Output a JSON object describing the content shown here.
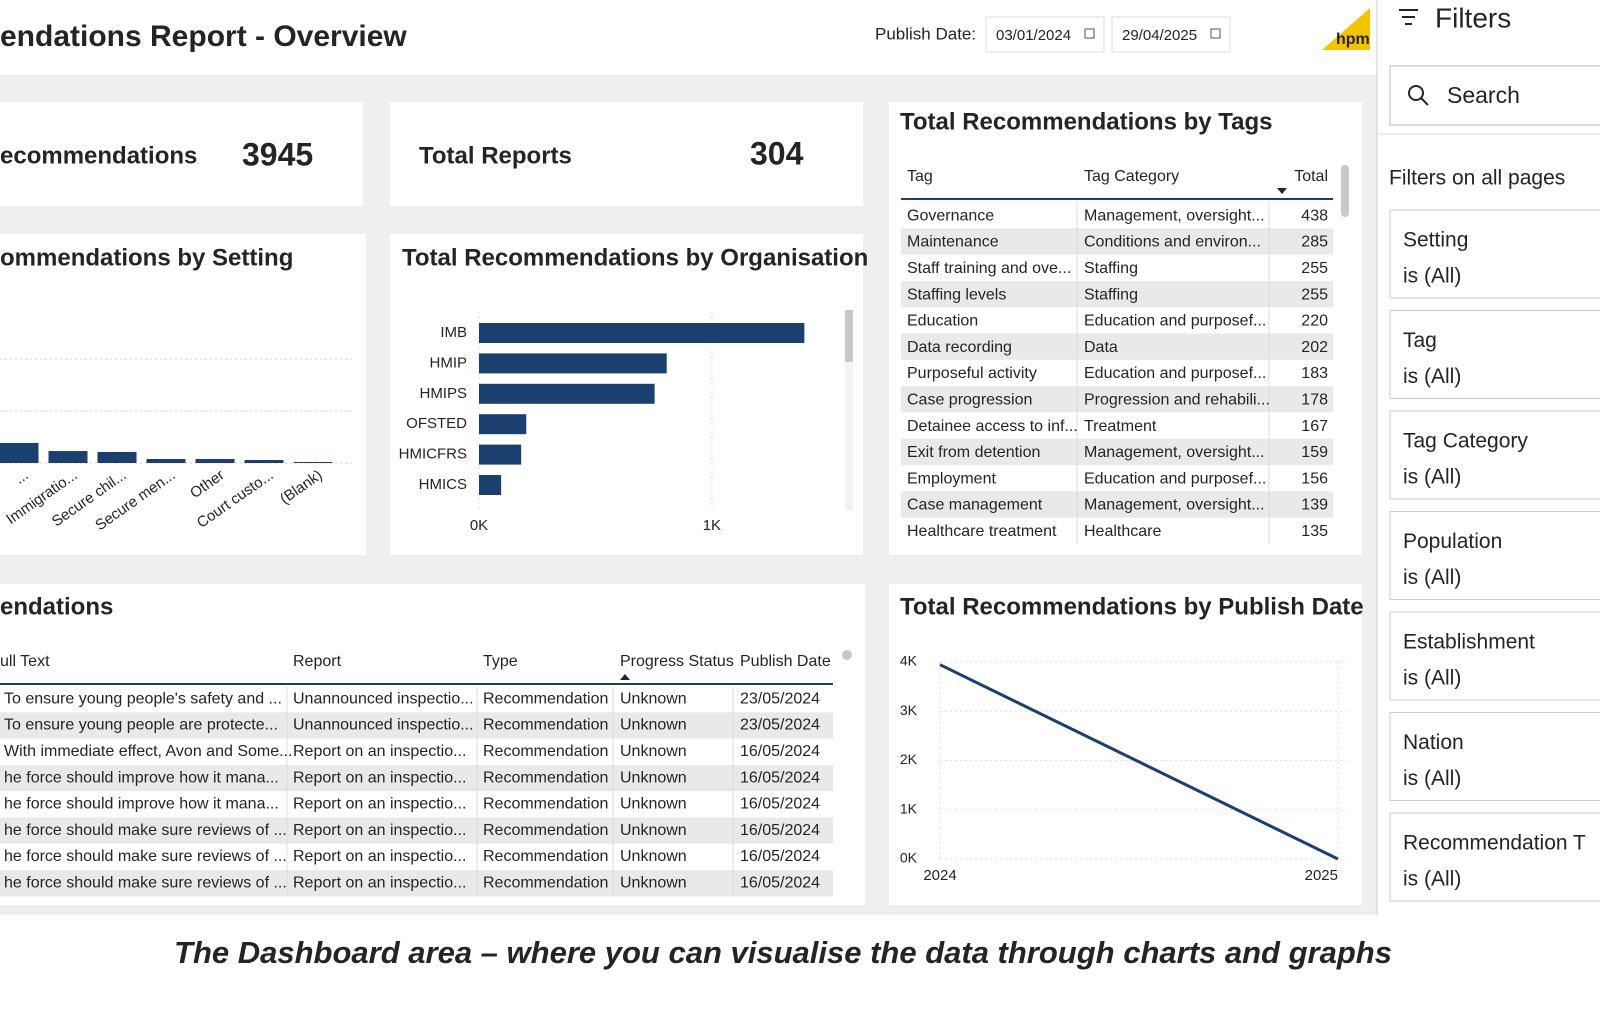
{
  "header": {
    "title": "endations Report - Overview",
    "publish_date_label": "Publish Date:",
    "start_date": "03/01/2024",
    "end_date": "29/04/2025",
    "logo": "hpm"
  },
  "cards": [
    {
      "label": "ecommendations",
      "value": 3945
    },
    {
      "label": "Total Reports",
      "value": 304
    }
  ],
  "setting_chart": {
    "type": "bar",
    "title": "ommendations by Setting",
    "categories": [
      "...",
      "Immigratio...",
      "Secure chil...",
      "Secure men...",
      "Other",
      "Court custo...",
      "(Blank)"
    ],
    "values": [
      385,
      230,
      212,
      77,
      77,
      58,
      19
    ],
    "ylim": [
      0,
      3000
    ],
    "ygrid": [
      1000,
      2000
    ],
    "color": "#1b3f6e"
  },
  "org_chart": {
    "type": "bar",
    "orientation": "horizontal",
    "title": "Total Recommendations by Organisation",
    "categories": [
      "IMB",
      "HMIP",
      "HMIPS",
      "OFSTED",
      "HMICFRS",
      "HMICS"
    ],
    "values": [
      1397,
      806,
      754,
      203,
      181,
      95
    ],
    "xlim": [
      0,
      1550
    ],
    "xticks": [
      {
        "value": 0,
        "label": "0K"
      },
      {
        "value": 1000,
        "label": "1K"
      }
    ],
    "color": "#1b3f6e"
  },
  "tags_table": {
    "title": "Total Recommendations by Tags",
    "columns": [
      "Tag",
      "Tag Category",
      "Total"
    ],
    "rows": [
      [
        "Governance",
        "Management, oversight...",
        438
      ],
      [
        "Maintenance",
        "Conditions and environ...",
        285
      ],
      [
        "Staff training and ove...",
        "Staffing",
        255
      ],
      [
        "Staffing levels",
        "Staffing",
        255
      ],
      [
        "Education",
        "Education and purposef...",
        220
      ],
      [
        "Data recording",
        "Data",
        202
      ],
      [
        "Purposeful activity",
        "Education and purposef...",
        183
      ],
      [
        "Case progression",
        "Progression and rehabili...",
        178
      ],
      [
        "Detainee access to inf...",
        "Treatment",
        167
      ],
      [
        "Exit from detention",
        "Management, oversight...",
        159
      ],
      [
        "Employment",
        "Education and purposef...",
        156
      ],
      [
        "Case management",
        "Management, oversight...",
        139
      ],
      [
        "Healthcare treatment",
        "Healthcare",
        135
      ]
    ]
  },
  "recs_table": {
    "title": "endations",
    "columns": [
      "ull Text",
      "Report",
      "Type",
      "Progress Status",
      "Publish Date"
    ],
    "rows": [
      [
        "To ensure young people's safety and ...",
        "Unannounced inspectio...",
        "Recommendation",
        "Unknown",
        "23/05/2024"
      ],
      [
        "To ensure young people are protecte...",
        "Unannounced inspectio...",
        "Recommendation",
        "Unknown",
        "23/05/2024"
      ],
      [
        "With immediate effect, Avon and Some...",
        "Report on an inspectio...",
        "Recommendation",
        "Unknown",
        "16/05/2024"
      ],
      [
        "he force should improve how it mana...",
        "Report on an inspectio...",
        "Recommendation",
        "Unknown",
        "16/05/2024"
      ],
      [
        "he force should improve how it mana...",
        "Report on an inspectio...",
        "Recommendation",
        "Unknown",
        "16/05/2024"
      ],
      [
        "he force should make sure reviews of ...",
        "Report on an inspectio...",
        "Recommendation",
        "Unknown",
        "16/05/2024"
      ],
      [
        "he force should make sure reviews of ...",
        "Report on an inspectio...",
        "Recommendation",
        "Unknown",
        "16/05/2024"
      ],
      [
        "he force should make sure reviews of ...",
        "Report on an inspectio...",
        "Recommendation",
        "Unknown",
        "16/05/2024"
      ]
    ]
  },
  "date_chart": {
    "type": "line",
    "title": "Total Recommendations by Publish Date",
    "x": [
      2024,
      2025
    ],
    "values": [
      3945,
      0
    ],
    "xlim": [
      2024,
      2025
    ],
    "xticks": [
      2024,
      2025
    ],
    "ylim": [
      0,
      4000
    ],
    "yticks": [
      {
        "value": 0,
        "label": "0K"
      },
      {
        "value": 1000,
        "label": "1K"
      },
      {
        "value": 2000,
        "label": "2K"
      },
      {
        "value": 3000,
        "label": "3K"
      },
      {
        "value": 4000,
        "label": "4K"
      }
    ],
    "color": "#1b3f6e"
  },
  "filters": {
    "title": "Filters",
    "search": "Search",
    "section": "Filters on all pages",
    "items": [
      {
        "name": "Setting",
        "value": "is (All)"
      },
      {
        "name": "Tag",
        "value": "is (All)"
      },
      {
        "name": "Tag Category",
        "value": "is (All)"
      },
      {
        "name": "Population",
        "value": "is (All)"
      },
      {
        "name": "Establishment",
        "value": "is (All)"
      },
      {
        "name": "Nation",
        "value": "is (All)"
      },
      {
        "name": "Recommendation T",
        "value": "is (All)"
      }
    ]
  },
  "caption": "The Dashboard area – where you can visualise the data through charts and graphs"
}
